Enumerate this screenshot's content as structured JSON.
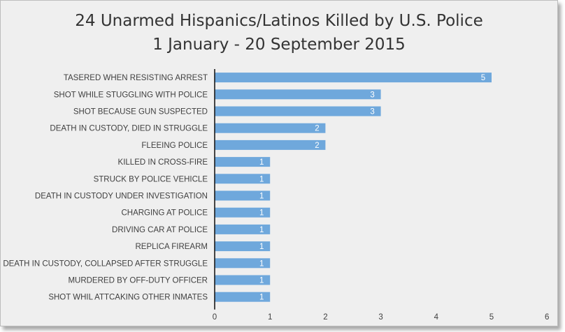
{
  "chart_data": {
    "type": "bar",
    "orientation": "horizontal",
    "title": "24 Unarmed Hispanics/Latinos Killed by U.S. Police",
    "subtitle": "1 January - 20 September 2015",
    "categories": [
      "TASERED WHEN RESISTING ARREST",
      "SHOT WHILE STUGGLING WITH POLICE",
      "SHOT BECAUSE GUN SUSPECTED",
      "DEATH IN CUSTODY, DIED IN STRUGGLE",
      "FLEEING POLICE",
      "KILLED IN CROSS-FIRE",
      "STRUCK BY POLICE VEHICLE",
      "DEATH IN CUSTODY UNDER INVESTIGATION",
      "CHARGING AT POLICE",
      "DRIVING CAR AT POLICE",
      "REPLICA FIREARM",
      "DEATH IN CUSTODY, COLLAPSED AFTER STRUGGLE",
      "MURDERED BY OFF-DUTY OFFICER",
      "SHOT WHIL ATTCAKING OTHER INMATES"
    ],
    "values": [
      5,
      3,
      3,
      2,
      2,
      1,
      1,
      1,
      1,
      1,
      1,
      1,
      1,
      1
    ],
    "xlim": [
      0,
      6
    ],
    "xticks": [
      "0",
      "1",
      "2",
      "3",
      "4",
      "5",
      "6"
    ],
    "grid": false,
    "data_labels": true,
    "bar_color": "#6fa8dc",
    "background_color": "#efefef"
  }
}
